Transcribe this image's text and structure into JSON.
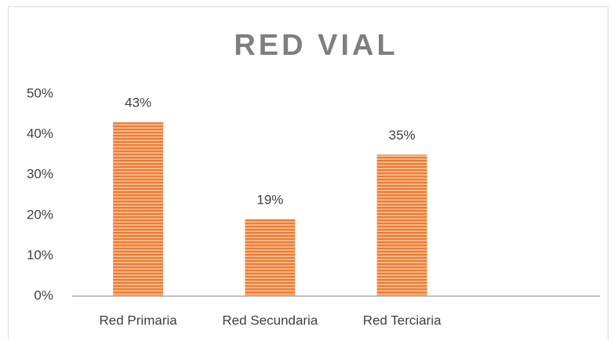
{
  "chart_data": {
    "type": "bar",
    "title": "RED VIAL",
    "categories": [
      "Red Primaria",
      "Red Secundaria",
      "Red Terciaria",
      null
    ],
    "values": [
      43,
      19,
      35,
      null
    ],
    "value_labels": [
      "43%",
      "19%",
      "35%",
      null
    ],
    "color": "#ed7d31",
    "ylim": [
      0,
      50
    ],
    "yticks": [
      {
        "value": 0,
        "label": "0%"
      },
      {
        "value": 10,
        "label": "10%"
      },
      {
        "value": 20,
        "label": "20%"
      },
      {
        "value": 30,
        "label": "30%"
      },
      {
        "value": 40,
        "label": "40%"
      },
      {
        "value": 50,
        "label": "50%"
      }
    ],
    "grid": false
  }
}
